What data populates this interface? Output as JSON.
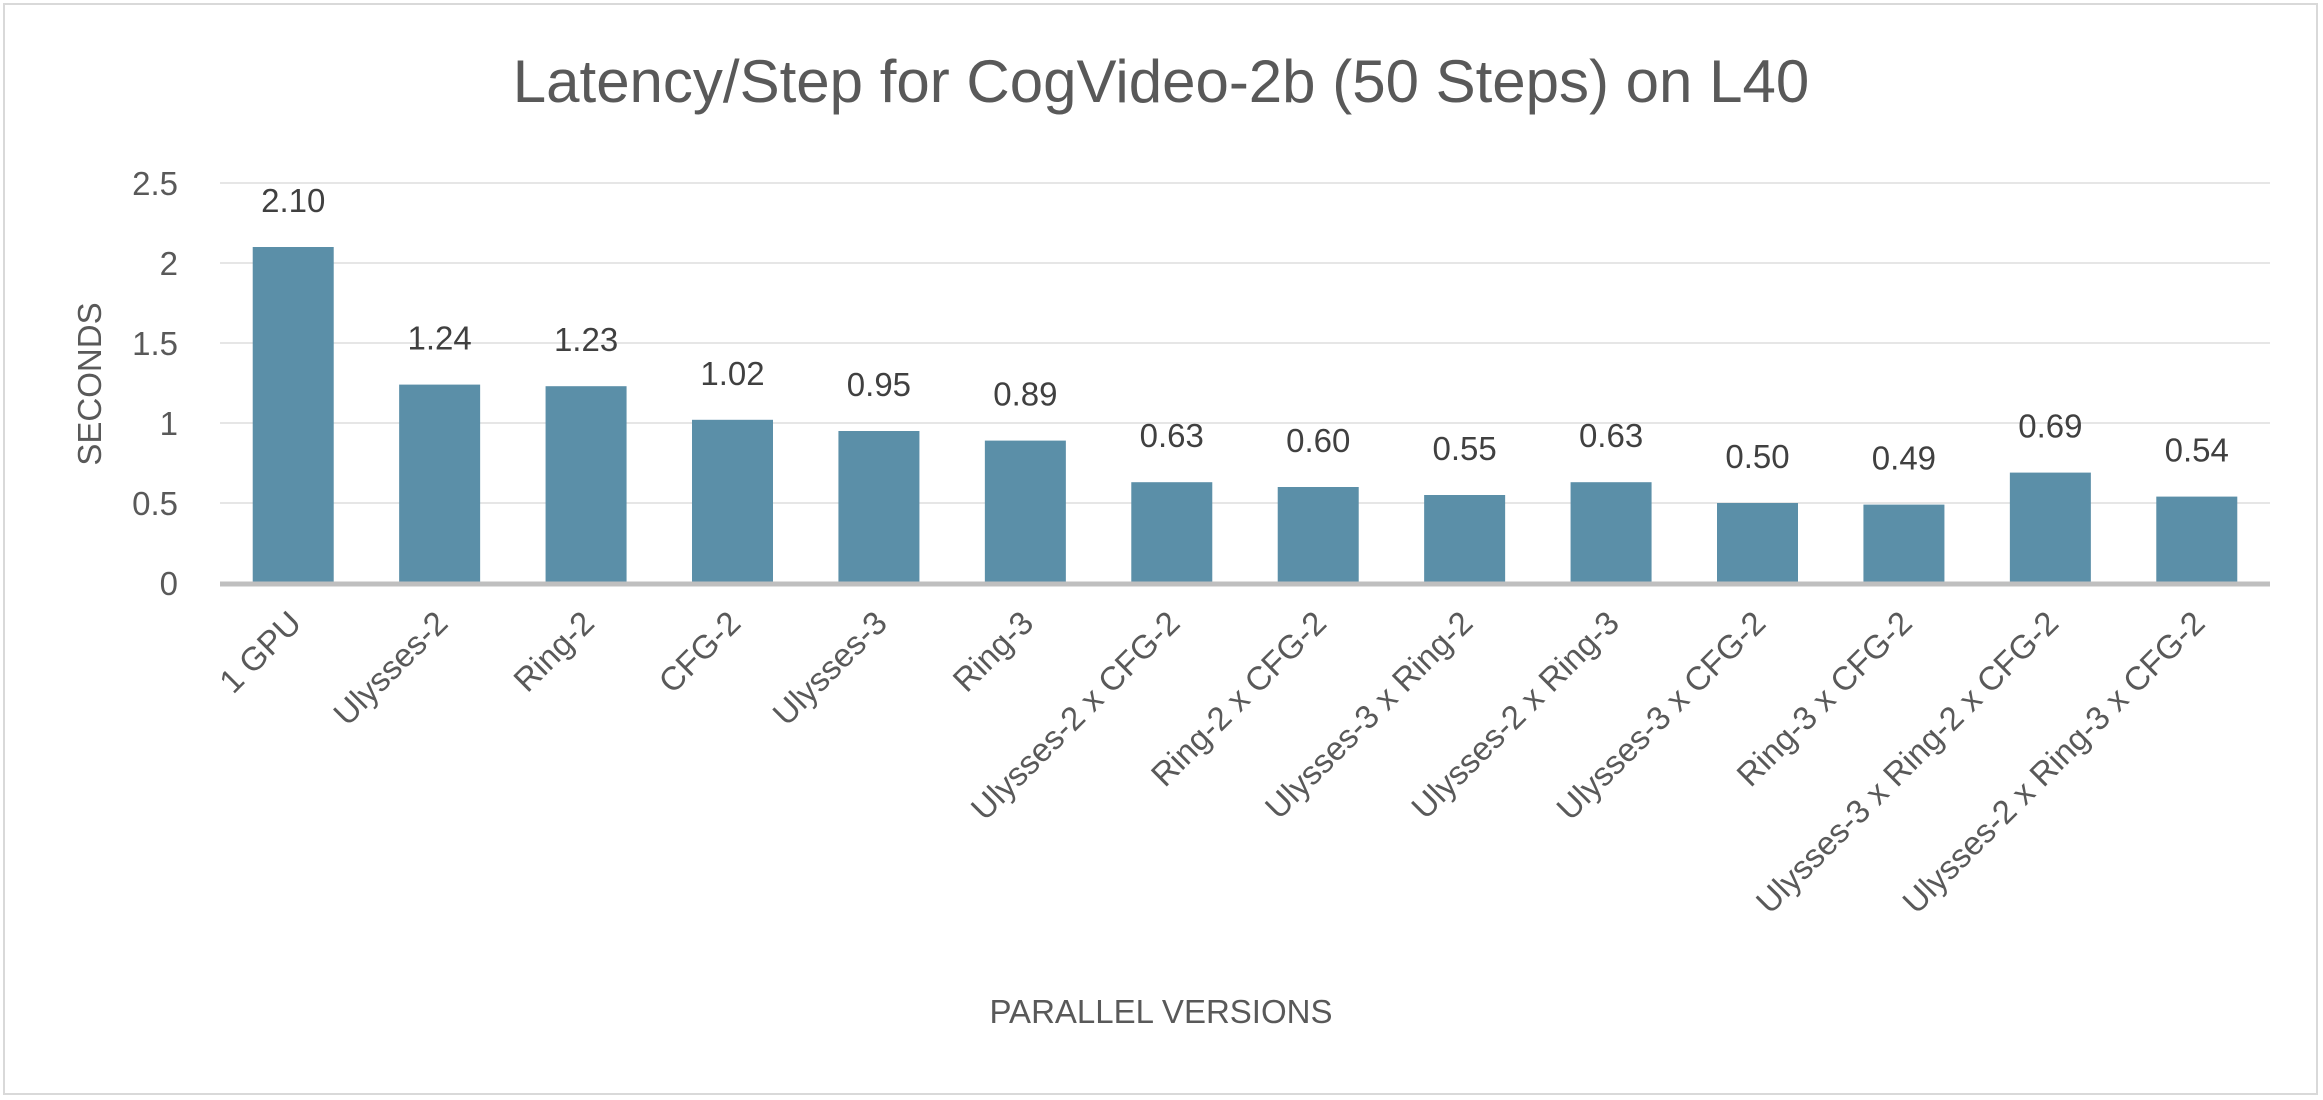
{
  "chart_data": {
    "type": "bar",
    "title": "Latency/Step for CogVideo-2b (50 Steps) on L40",
    "xlabel": "PARALLEL VERSIONS",
    "ylabel": "SECONDS",
    "ylim": [
      0,
      2.5
    ],
    "yticks": [
      "0",
      "0.5",
      "1",
      "1.5",
      "2",
      "2.5"
    ],
    "grid": true,
    "bar_color": "#5b8fa8",
    "categories": [
      "1 GPU",
      "Ulysses-2",
      "Ring-2",
      "CFG-2",
      "Ulysses-3",
      "Ring-3",
      "Ulysses-2 x CFG-2",
      "Ring-2 x CFG-2",
      "Ulysses-3 x Ring-2",
      "Ulysses-2 x Ring-3",
      "Ulysses-3 x CFG-2",
      "Ring-3 x CFG-2",
      "Ulysses-3 x Ring-2 x CFG-2",
      "Ulysses-2 x Ring-3 x CFG-2"
    ],
    "values": [
      2.1,
      1.24,
      1.23,
      1.02,
      0.95,
      0.89,
      0.63,
      0.6,
      0.55,
      0.63,
      0.5,
      0.49,
      0.69,
      0.54
    ],
    "data_labels": [
      "2.10",
      "1.24",
      "1.23",
      "1.02",
      "0.95",
      "0.89",
      "0.63",
      "0.60",
      "0.55",
      "0.63",
      "0.50",
      "0.49",
      "0.69",
      "0.54"
    ]
  }
}
